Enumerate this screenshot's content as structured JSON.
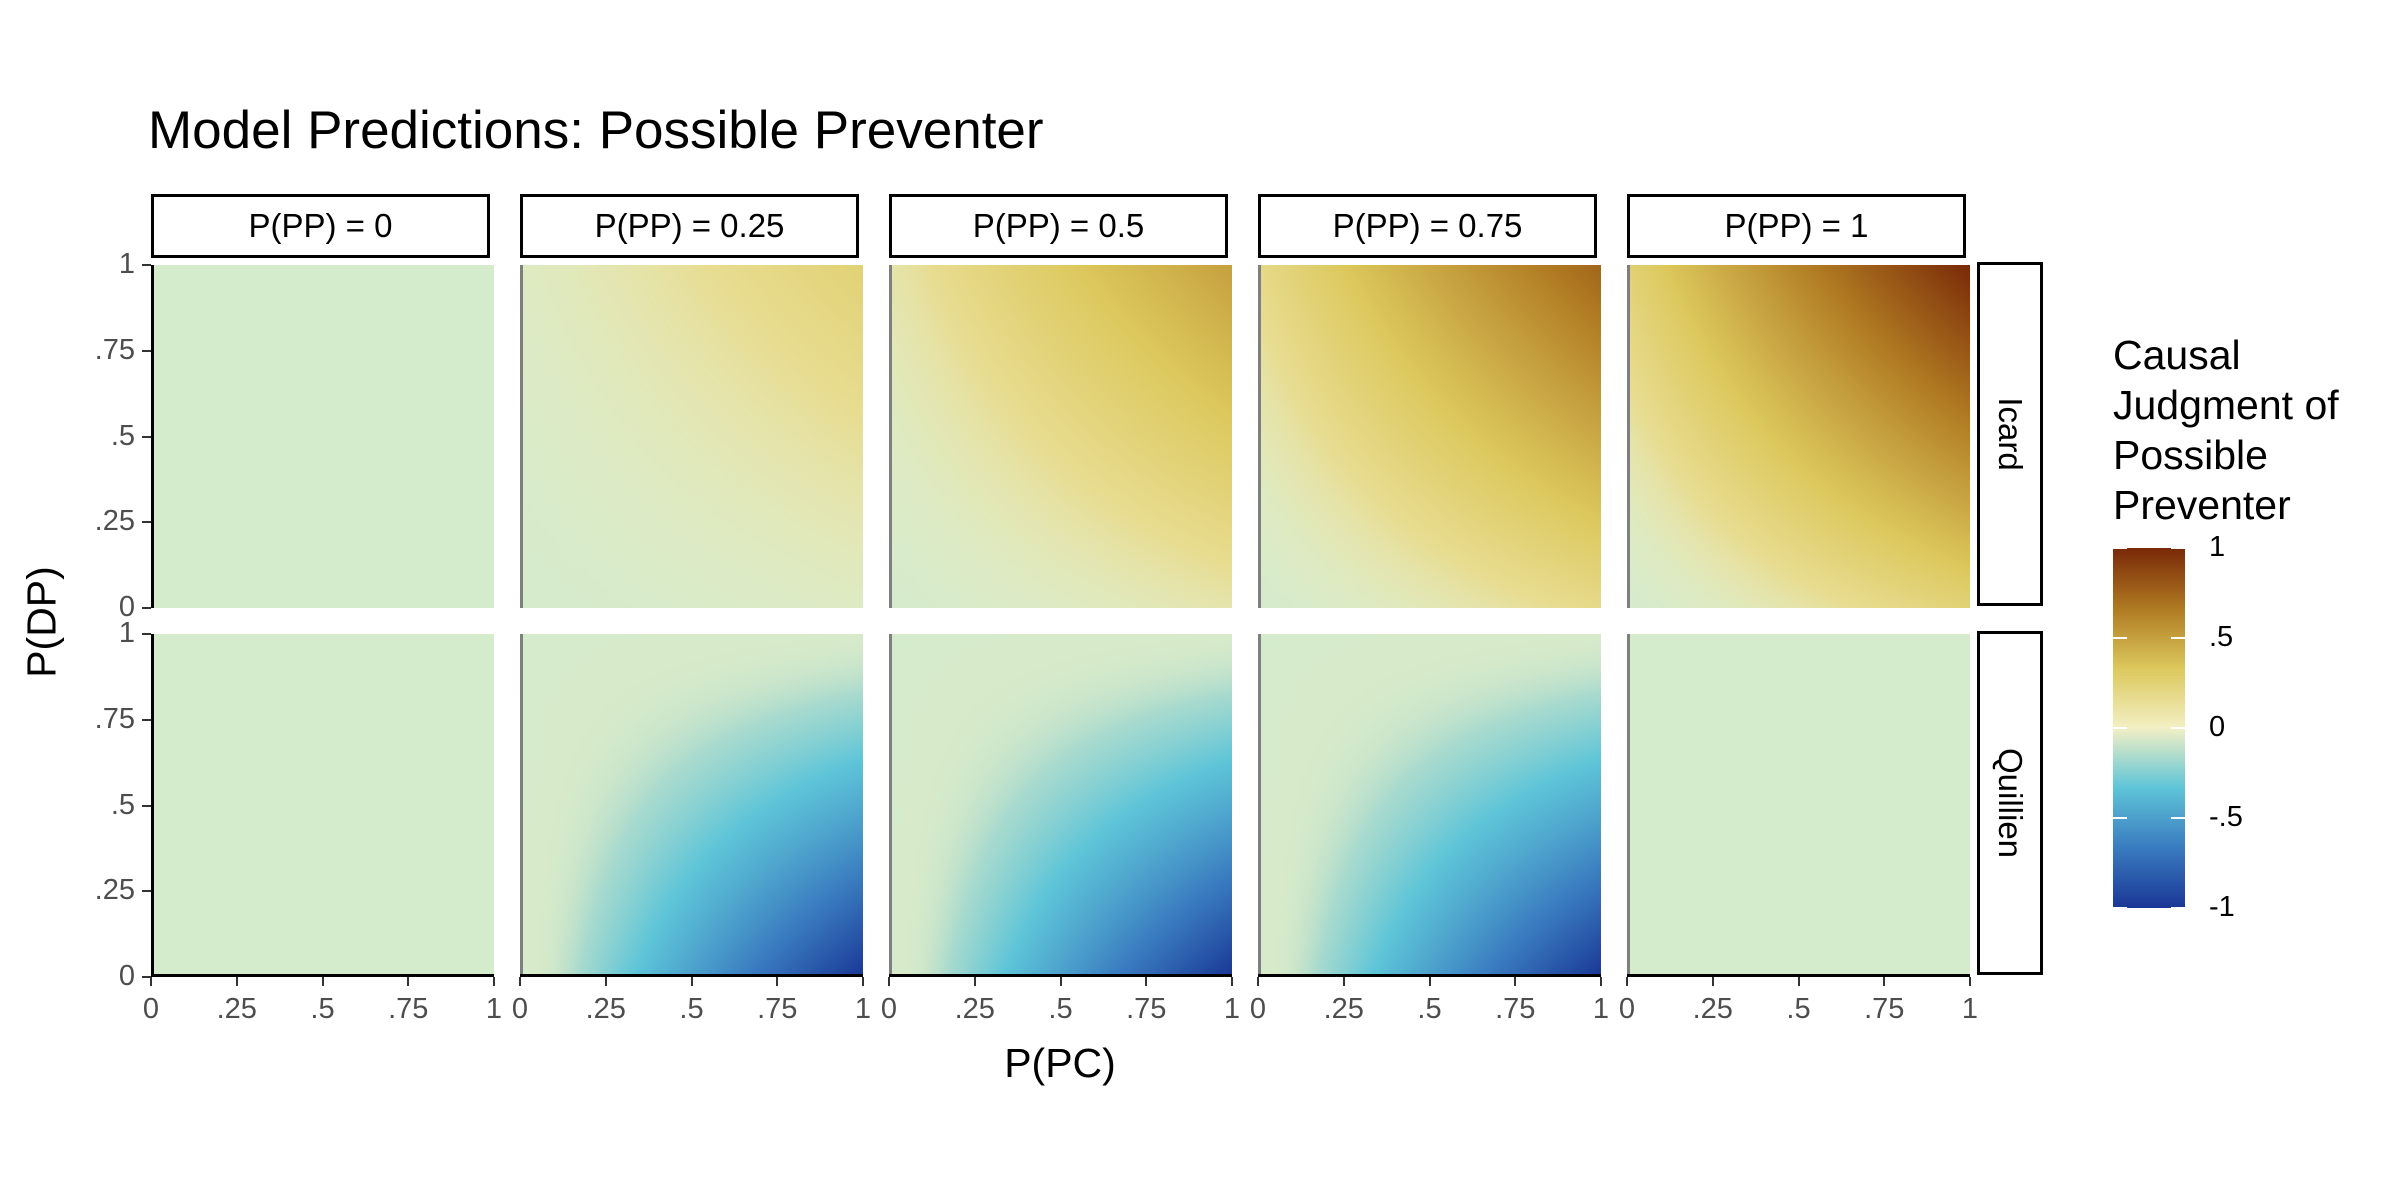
{
  "chart_data": {
    "type": "heatmap",
    "title": "Model Predictions: Possible Preventer",
    "xlabel": "P(PC)",
    "ylabel": "P(DP)",
    "x_ticks": [
      "0",
      ".25",
      ".5",
      ".75",
      "1"
    ],
    "y_ticks": [
      "0",
      ".25",
      ".5",
      ".75",
      "1"
    ],
    "xlim": [
      0,
      1
    ],
    "ylim": [
      0,
      1
    ],
    "columns": [
      "P(PP) = 0",
      "P(PP) = 0.25",
      "P(PP) = 0.5",
      "P(PP) = 0.75",
      "P(PP) = 1"
    ],
    "column_pp_values": [
      0,
      0.25,
      0.5,
      0.75,
      1
    ],
    "rows": [
      "Icard",
      "Quillien"
    ],
    "legend": {
      "title_lines": [
        "Causal",
        "Judgment of",
        "Possible",
        "Preventer"
      ],
      "labels": [
        "1",
        ".5",
        "0",
        "-.5",
        "-1"
      ],
      "values": [
        1,
        0.5,
        0,
        -0.5,
        -1
      ],
      "range": [
        -1,
        1
      ],
      "colors": [
        "#1a3896",
        "#3a7cc0",
        "#5ec5d8",
        "#f3f0c4",
        "#dcc85c",
        "#b07a22",
        "#7a2a08"
      ]
    },
    "panels": [
      {
        "row": "Icard",
        "column": "P(PP) = 0",
        "corner_values": {
          "pc0_dp0": 0,
          "pc1_dp0": 0,
          "pc0_dp1": 0,
          "pc1_dp1": 0
        }
      },
      {
        "row": "Icard",
        "column": "P(PP) = 0.25",
        "corner_values": {
          "pc0_dp0": 0,
          "pc1_dp0": 0.06,
          "pc0_dp1": 0.06,
          "pc1_dp1": 0.25
        }
      },
      {
        "row": "Icard",
        "column": "P(PP) = 0.5",
        "corner_values": {
          "pc0_dp0": 0,
          "pc1_dp0": 0.12,
          "pc0_dp1": 0.12,
          "pc1_dp1": 0.5
        }
      },
      {
        "row": "Icard",
        "column": "P(PP) = 0.75",
        "corner_values": {
          "pc0_dp0": 0,
          "pc1_dp0": 0.19,
          "pc0_dp1": 0.19,
          "pc1_dp1": 0.75
        }
      },
      {
        "row": "Icard",
        "column": "P(PP) = 1",
        "corner_values": {
          "pc0_dp0": 0,
          "pc1_dp0": 0.25,
          "pc0_dp1": 0.25,
          "pc1_dp1": 1
        }
      },
      {
        "row": "Quillien",
        "column": "P(PP) = 0",
        "corner_values": {
          "pc0_dp0": 0,
          "pc1_dp0": 0,
          "pc0_dp1": 0,
          "pc1_dp1": 0
        }
      },
      {
        "row": "Quillien",
        "column": "P(PP) = 0.25",
        "corner_values": {
          "pc0_dp0": 0,
          "pc1_dp0": -1,
          "pc0_dp1": 0,
          "pc1_dp1": -0.1
        }
      },
      {
        "row": "Quillien",
        "column": "P(PP) = 0.5",
        "corner_values": {
          "pc0_dp0": 0,
          "pc1_dp0": -1,
          "pc0_dp1": 0,
          "pc1_dp1": -0.1
        }
      },
      {
        "row": "Quillien",
        "column": "P(PP) = 0.75",
        "corner_values": {
          "pc0_dp0": 0,
          "pc1_dp0": -1,
          "pc0_dp1": 0,
          "pc1_dp1": -0.1
        }
      },
      {
        "row": "Quillien",
        "column": "P(PP) = 1",
        "corner_values": {
          "pc0_dp0": 0,
          "pc1_dp0": 0,
          "pc0_dp1": 0,
          "pc1_dp1": 0
        }
      }
    ]
  }
}
